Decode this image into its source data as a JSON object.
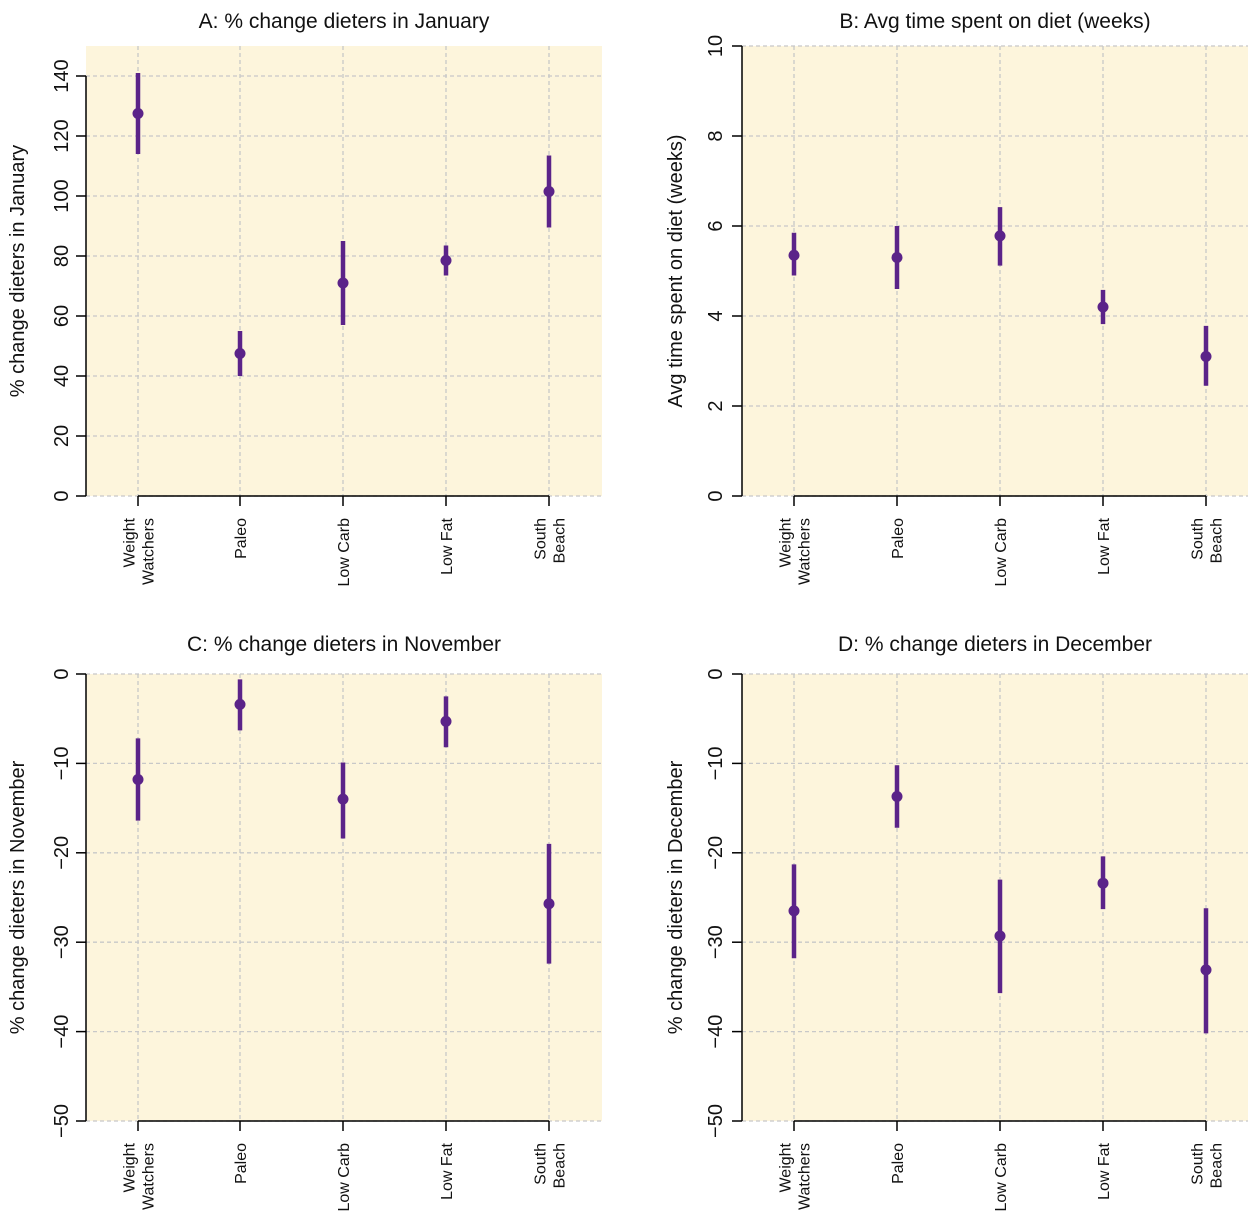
{
  "colors": {
    "plot_background": "#fdf5dc",
    "grid": "#c8c8c8",
    "marker": "#5b2389",
    "axis": "#000000"
  },
  "chart_data": [
    {
      "type": "scatter",
      "title": "A: % change dieters in January",
      "ylabel": "% change dieters in January",
      "categories": [
        [
          "Weight",
          "Watchers"
        ],
        [
          "Paleo"
        ],
        [
          "Low Carb"
        ],
        [
          "Low Fat"
        ],
        [
          "South",
          "Beach"
        ]
      ],
      "ylim": [
        0,
        150
      ],
      "yticks": [
        0,
        20,
        40,
        60,
        80,
        100,
        120,
        140
      ],
      "ytick_labels": [
        "0",
        "20",
        "40",
        "60",
        "80",
        "100",
        "120",
        "140"
      ],
      "grid": true,
      "points": [
        {
          "category": "Weight Watchers",
          "y": 127.5,
          "low": 114,
          "high": 141
        },
        {
          "category": "Paleo",
          "y": 47.5,
          "low": 40,
          "high": 55
        },
        {
          "category": "Low Carb",
          "y": 71,
          "low": 57,
          "high": 85
        },
        {
          "category": "Low Fat",
          "y": 78.5,
          "low": 73.5,
          "high": 83.5
        },
        {
          "category": "South Beach",
          "y": 101.5,
          "low": 89.5,
          "high": 113.5
        }
      ]
    },
    {
      "type": "scatter",
      "title": "B: Avg time spent on diet (weeks)",
      "ylabel": "Avg time spent on diet (weeks)",
      "categories": [
        [
          "Weight",
          "Watchers"
        ],
        [
          "Paleo"
        ],
        [
          "Low Carb"
        ],
        [
          "Low Fat"
        ],
        [
          "South",
          "Beach"
        ]
      ],
      "ylim": [
        0,
        10
      ],
      "yticks": [
        0,
        2,
        4,
        6,
        8,
        10
      ],
      "ytick_labels": [
        "0",
        "2",
        "4",
        "6",
        "8",
        "10"
      ],
      "grid": true,
      "points": [
        {
          "category": "Weight Watchers",
          "y": 5.35,
          "low": 4.9,
          "high": 5.85
        },
        {
          "category": "Paleo",
          "y": 5.3,
          "low": 4.6,
          "high": 6.0
        },
        {
          "category": "Low Carb",
          "y": 5.78,
          "low": 5.12,
          "high": 6.42
        },
        {
          "category": "Low Fat",
          "y": 4.2,
          "low": 3.82,
          "high": 4.58
        },
        {
          "category": "South Beach",
          "y": 3.1,
          "low": 2.45,
          "high": 3.78
        }
      ]
    },
    {
      "type": "scatter",
      "title": "C: % change dieters in November",
      "ylabel": "% change dieters in November",
      "categories": [
        [
          "Weight",
          "Watchers"
        ],
        [
          "Paleo"
        ],
        [
          "Low Carb"
        ],
        [
          "Low Fat"
        ],
        [
          "South",
          "Beach"
        ]
      ],
      "ylim": [
        -50,
        0
      ],
      "yticks": [
        -50,
        -40,
        -30,
        -20,
        -10,
        0
      ],
      "ytick_labels": [
        "−50",
        "−40",
        "−30",
        "−20",
        "−10",
        "0"
      ],
      "grid": true,
      "points": [
        {
          "category": "Weight Watchers",
          "y": -11.8,
          "low": -16.4,
          "high": -7.2
        },
        {
          "category": "Paleo",
          "y": -3.4,
          "low": -6.3,
          "high": -0.6
        },
        {
          "category": "Low Carb",
          "y": -14.0,
          "low": -18.4,
          "high": -9.9
        },
        {
          "category": "Low Fat",
          "y": -5.3,
          "low": -8.2,
          "high": -2.5
        },
        {
          "category": "South Beach",
          "y": -25.7,
          "low": -32.4,
          "high": -19.0
        }
      ]
    },
    {
      "type": "scatter",
      "title": "D: % change dieters in December",
      "ylabel": "% change dieters in December",
      "categories": [
        [
          "Weight",
          "Watchers"
        ],
        [
          "Paleo"
        ],
        [
          "Low Carb"
        ],
        [
          "Low Fat"
        ],
        [
          "South",
          "Beach"
        ]
      ],
      "ylim": [
        -50,
        0
      ],
      "yticks": [
        -50,
        -40,
        -30,
        -20,
        -10,
        0
      ],
      "ytick_labels": [
        "−50",
        "−40",
        "−30",
        "−20",
        "−10",
        "0"
      ],
      "grid": true,
      "points": [
        {
          "category": "Weight Watchers",
          "y": -26.5,
          "low": -31.8,
          "high": -21.3
        },
        {
          "category": "Paleo",
          "y": -13.7,
          "low": -17.2,
          "high": -10.2
        },
        {
          "category": "Low Carb",
          "y": -29.3,
          "low": -35.7,
          "high": -23.0
        },
        {
          "category": "Low Fat",
          "y": -23.4,
          "low": -26.3,
          "high": -20.4
        },
        {
          "category": "South Beach",
          "y": -33.1,
          "low": -40.2,
          "high": -26.2
        }
      ]
    }
  ]
}
